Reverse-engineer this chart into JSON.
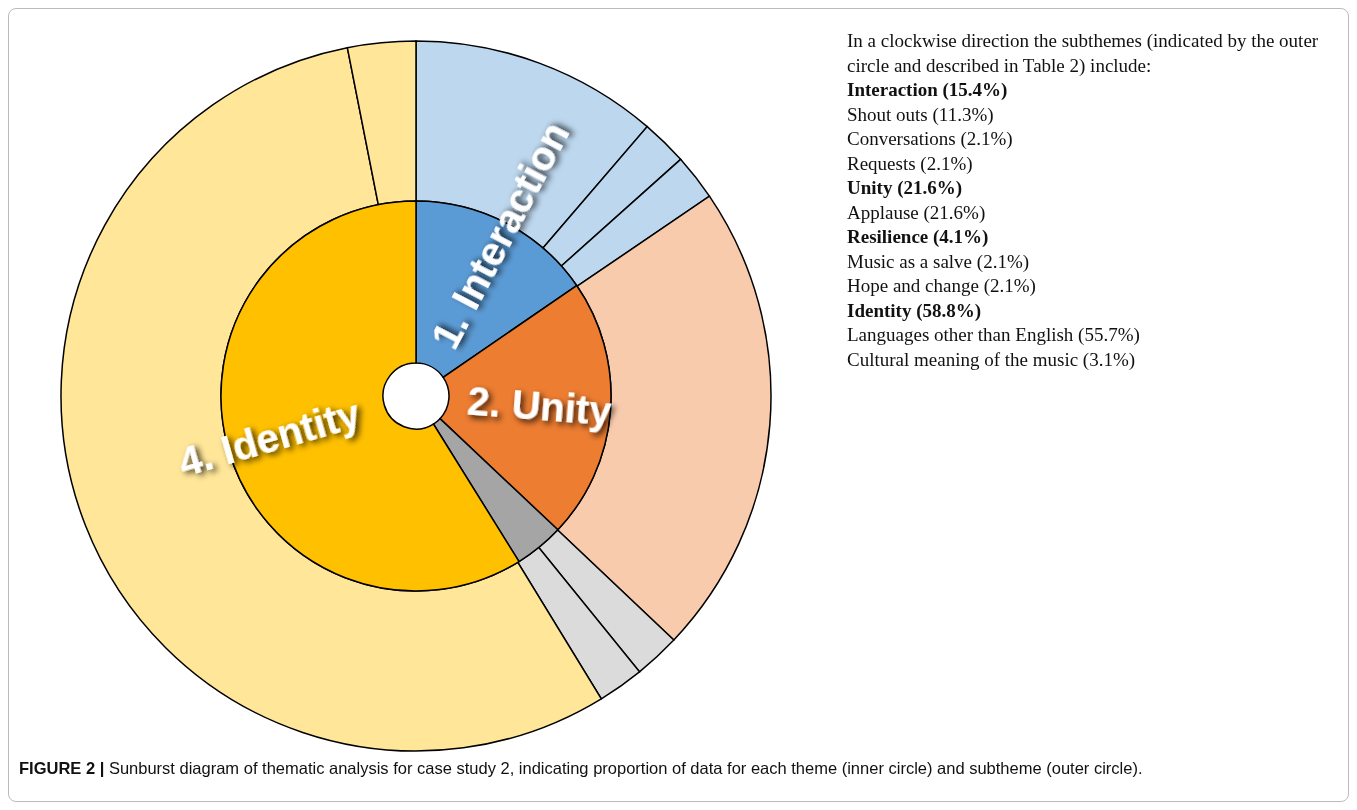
{
  "chart_data": [
    {
      "type": "pie",
      "categories": [
        "1. Interaction",
        "2. Unity",
        null,
        "4. Identity"
      ],
      "values": [
        15.4,
        21.6,
        4.1,
        58.8
      ],
      "colors": [
        "#5b9bd5",
        "#ed7d31",
        "#a5a5a5",
        "#ffc000"
      ],
      "annotations": [
        "In a clockwise direction the subthemes (indicated by the outer circle and described in Table 2) include:",
        "Interaction (15.4%)",
        "Shout outs (11.3%)",
        "Conversations (2.1%)",
        "Requests (2.1%)",
        "Unity (21.6%)",
        "Applause (21.6%)",
        "Resilience (4.1%)",
        "Music as a salve (2.1%)",
        "Hope and change (2.1%)",
        "Identity (58.8%)",
        "Languages other than English (55.7%)",
        "Cultural meaning of the music (3.1%)",
        "FIGURE 2 | Sunburst diagram of thematic analysis for case study 2, indicating proportion of data for each theme (inner circle) and subtheme (outer circle)."
      ]
    },
    {
      "type": "donut",
      "categories": [
        null,
        null,
        null,
        null,
        null,
        null,
        null,
        null
      ],
      "values": [
        11.3,
        2.1,
        2.1,
        21.6,
        2.1,
        2.1,
        55.7,
        3.1
      ],
      "colors": [
        "#bdd7ee",
        "#bdd7ee",
        "#bdd7ee",
        "#f8cbad",
        "#dbdbdb",
        "#dbdbdb",
        "#ffe699",
        "#ffe699"
      ]
    }
  ]
}
